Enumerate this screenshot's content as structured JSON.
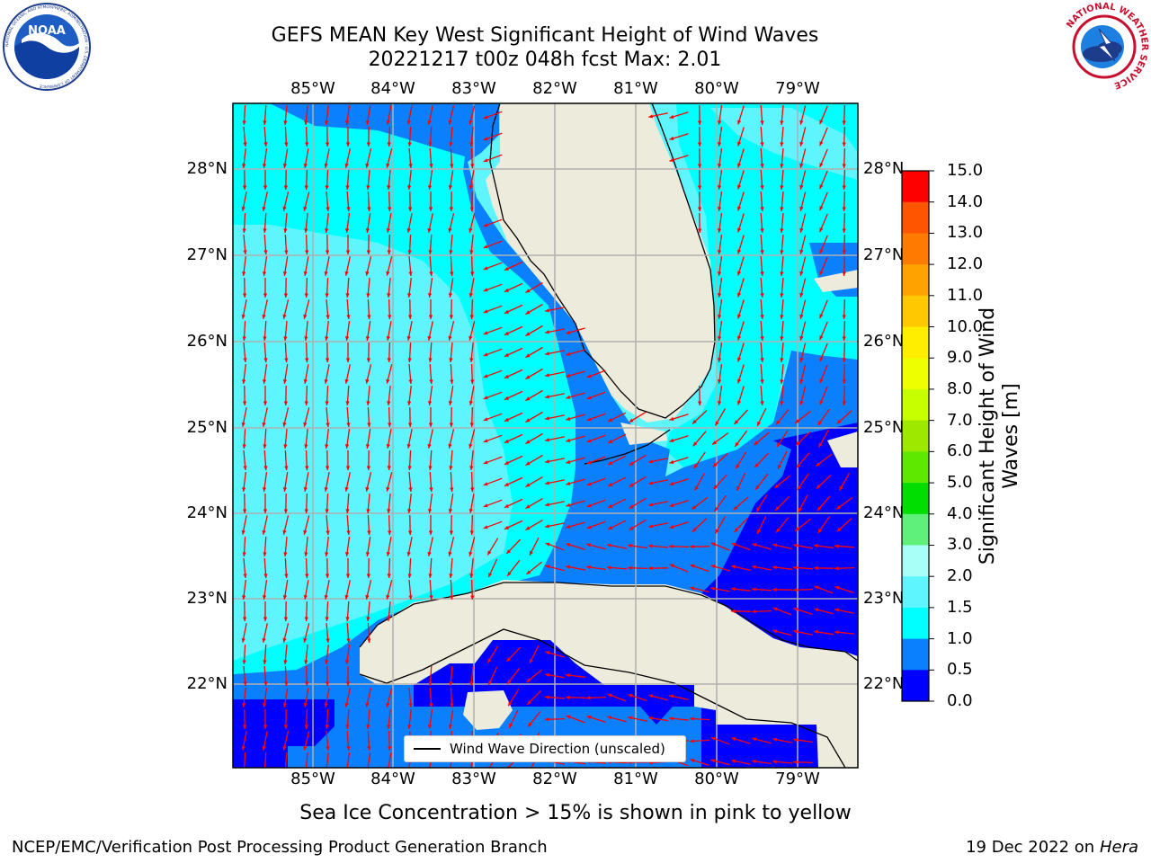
{
  "title_line1": "GEFS MEAN Key West Significant Height of Wind Waves",
  "title_line2": "20221217 t00z 048h fcst   Max: 2.01",
  "logos": {
    "left": {
      "name": "NOAA",
      "ring_text": "NATIONAL OCEANIC AND ATMOSPHERIC ADMINISTRATION · U.S. DEPARTMENT OF COMMERCE"
    },
    "right": {
      "name": "NATIONAL WEATHER SERVICE"
    }
  },
  "lon_labels": [
    "85°W",
    "84°W",
    "83°W",
    "82°W",
    "81°W",
    "80°W",
    "79°W"
  ],
  "lat_labels": [
    "28°N",
    "27°N",
    "26°N",
    "25°N",
    "24°N",
    "23°N",
    "22°N"
  ],
  "legend": {
    "label": "Wind Wave Direction (unscaled)"
  },
  "colorbar": {
    "label_line1": "Significant Height of Wind",
    "label_line2": "Waves [m]",
    "ticks": [
      "15.0",
      "14.0",
      "13.0",
      "12.0",
      "11.0",
      "10.0",
      "9.0",
      "8.0",
      "7.0",
      "6.0",
      "5.0",
      "4.0",
      "3.0",
      "2.0",
      "1.5",
      "1.0",
      "0.5",
      "0.0"
    ],
    "colors": [
      "#ff0000",
      "#ff2e00",
      "#ff5500",
      "#ff7a00",
      "#ffa200",
      "#ffc800",
      "#ffee00",
      "#eeff00",
      "#c8ff00",
      "#9ee800",
      "#5ee800",
      "#00dd00",
      "#5ef07a",
      "#a8fff8",
      "#5ff5ff",
      "#00ffff",
      "#0a80ff",
      "#0000ff"
    ]
  },
  "map_colors": {
    "land": "#ecebdc",
    "lt_cyan": "#5ff5ff",
    "cyan": "#00ffff",
    "med_blue": "#0a80ff",
    "deep_blue": "#0000ff",
    "grid": "#b0b0b0",
    "arrow": "#ff0000",
    "coast": "#000000"
  },
  "footer": {
    "note": "Sea Ice Concentration > 15% is shown in pink to yellow",
    "left": "NCEP/EMC/Verification Post Processing Product Generation Branch",
    "right_date": "19 Dec 2022 on",
    "right_machine": "Hera"
  }
}
